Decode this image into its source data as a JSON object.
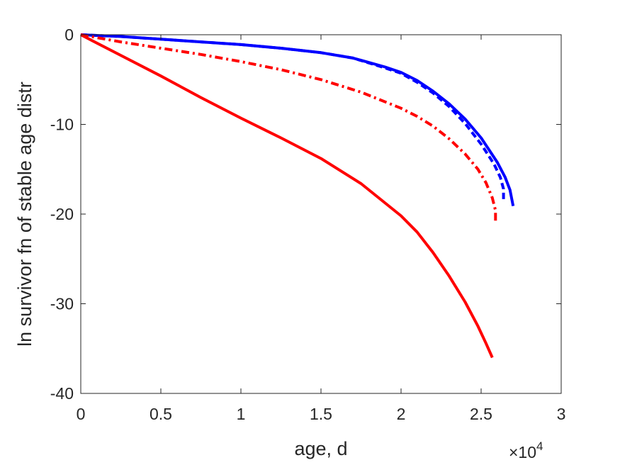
{
  "chart_data": {
    "type": "line",
    "title": "",
    "xlabel": "age, d",
    "ylabel": "ln survivor fn of stable age distr",
    "x_multiplier": {
      "base": "×10",
      "exponent": "4"
    },
    "xlim": [
      0,
      30000
    ],
    "ylim": [
      -40,
      0
    ],
    "xticks": [
      0,
      5000,
      10000,
      15000,
      20000,
      25000,
      30000
    ],
    "xtick_labels": [
      "0",
      "0.5",
      "1",
      "1.5",
      "2",
      "2.5",
      "3"
    ],
    "yticks": [
      0,
      -10,
      -20,
      -30,
      -40
    ],
    "ytick_labels": [
      "0",
      "-10",
      "-20",
      "-30",
      "-40"
    ],
    "grid": false,
    "legend": "none",
    "series": [
      {
        "color": "#0000ff",
        "style": "solid",
        "points": [
          [
            0,
            0
          ],
          [
            2500,
            -0.2
          ],
          [
            5000,
            -0.5
          ],
          [
            7500,
            -0.8
          ],
          [
            10000,
            -1.1
          ],
          [
            12500,
            -1.5
          ],
          [
            15000,
            -2.0
          ],
          [
            17000,
            -2.6
          ],
          [
            19000,
            -3.6
          ],
          [
            20000,
            -4.2
          ],
          [
            21000,
            -5.1
          ],
          [
            22000,
            -6.3
          ],
          [
            23000,
            -7.7
          ],
          [
            24000,
            -9.4
          ],
          [
            25000,
            -11.5
          ],
          [
            26000,
            -14.2
          ],
          [
            26500,
            -15.9
          ],
          [
            26800,
            -17.3
          ],
          [
            27000,
            -19.1
          ]
        ]
      },
      {
        "color": "#0000ff",
        "style": "dashed",
        "points": [
          [
            0,
            0
          ],
          [
            2500,
            -0.2
          ],
          [
            5000,
            -0.5
          ],
          [
            7500,
            -0.8
          ],
          [
            10000,
            -1.1
          ],
          [
            12500,
            -1.5
          ],
          [
            15000,
            -2.0
          ],
          [
            17000,
            -2.6
          ],
          [
            19000,
            -3.7
          ],
          [
            20000,
            -4.3
          ],
          [
            21000,
            -5.3
          ],
          [
            22000,
            -6.5
          ],
          [
            23000,
            -8.0
          ],
          [
            24000,
            -9.9
          ],
          [
            25000,
            -12.2
          ],
          [
            25800,
            -14.4
          ],
          [
            26200,
            -15.9
          ],
          [
            26400,
            -17.2
          ],
          [
            26400,
            -18.6
          ]
        ]
      },
      {
        "color": "#ff0000",
        "style": "dashdot",
        "points": [
          [
            0,
            0
          ],
          [
            2500,
            -0.8
          ],
          [
            5000,
            -1.5
          ],
          [
            7500,
            -2.2
          ],
          [
            10000,
            -3.0
          ],
          [
            12500,
            -3.9
          ],
          [
            15000,
            -5.0
          ],
          [
            17500,
            -6.4
          ],
          [
            20000,
            -8.2
          ],
          [
            21000,
            -9.1
          ],
          [
            22000,
            -10.2
          ],
          [
            23000,
            -11.6
          ],
          [
            24000,
            -13.3
          ],
          [
            24800,
            -15.0
          ],
          [
            25300,
            -16.5
          ],
          [
            25700,
            -18.2
          ],
          [
            25900,
            -19.6
          ],
          [
            25900,
            -21.1
          ]
        ]
      },
      {
        "color": "#ff0000",
        "style": "solid",
        "points": [
          [
            0,
            0
          ],
          [
            2500,
            -2.3
          ],
          [
            5000,
            -4.6
          ],
          [
            7500,
            -7.0
          ],
          [
            10000,
            -9.3
          ],
          [
            12500,
            -11.5
          ],
          [
            15000,
            -13.8
          ],
          [
            17500,
            -16.6
          ],
          [
            20000,
            -20.2
          ],
          [
            21000,
            -22.0
          ],
          [
            22000,
            -24.3
          ],
          [
            23000,
            -26.9
          ],
          [
            24000,
            -29.8
          ],
          [
            24800,
            -32.5
          ],
          [
            25300,
            -34.4
          ],
          [
            25500,
            -35.2
          ],
          [
            25700,
            -36.0
          ]
        ]
      }
    ]
  }
}
